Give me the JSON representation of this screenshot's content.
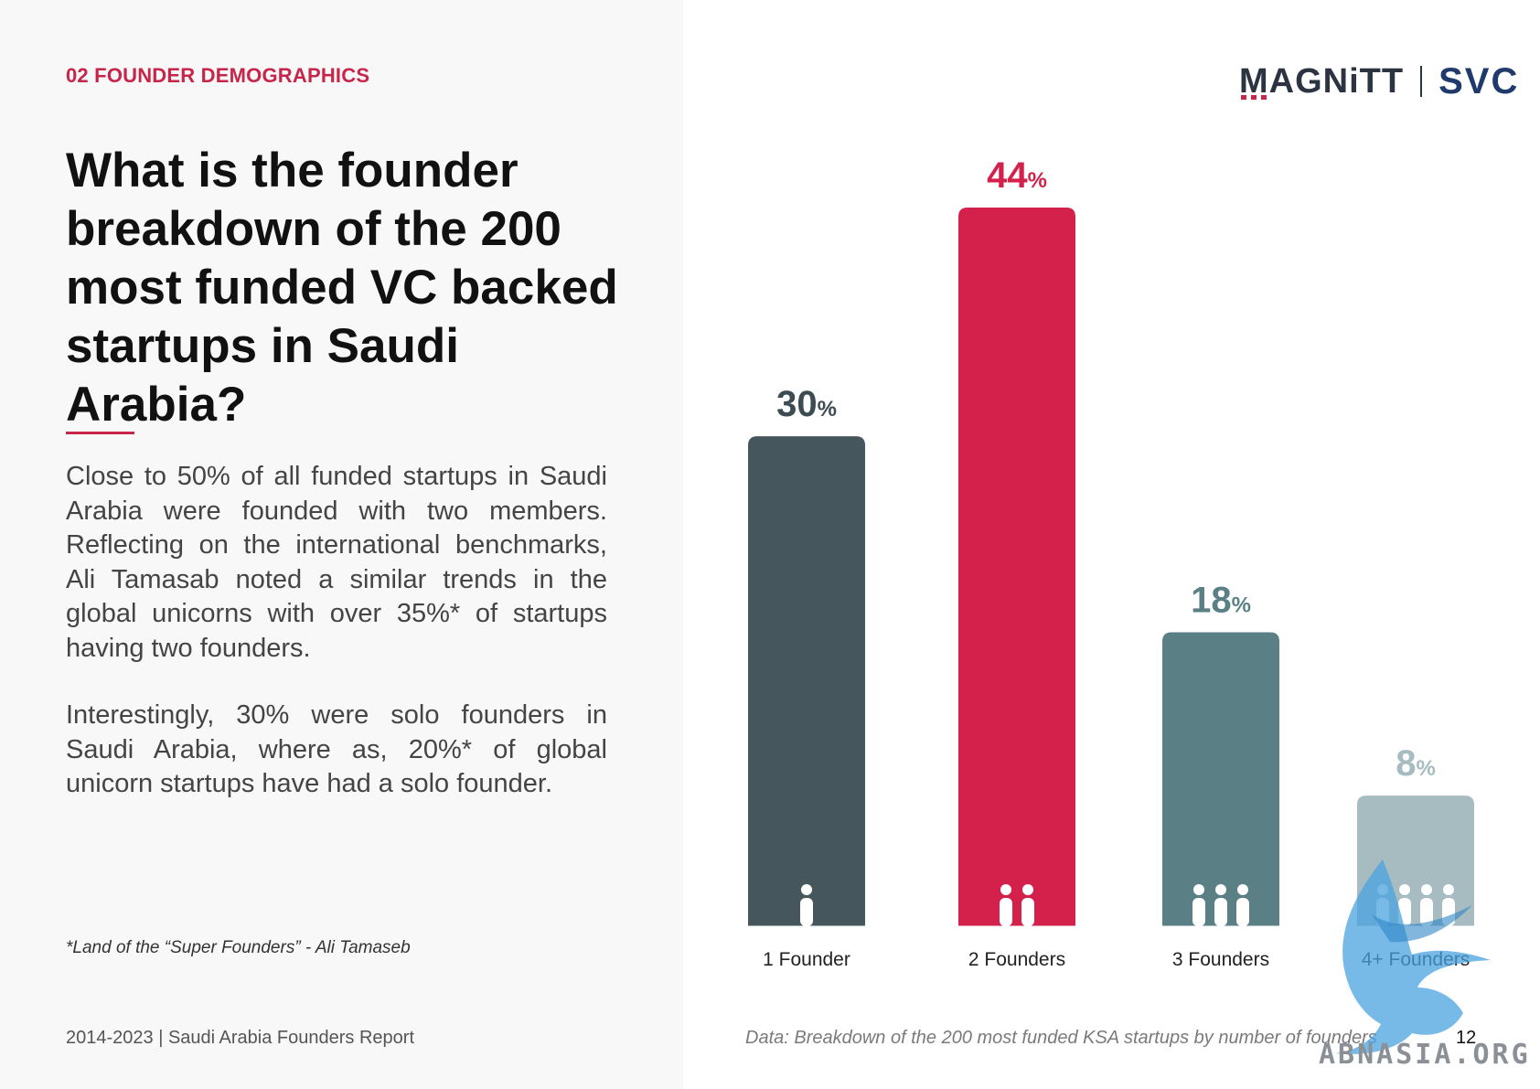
{
  "section_label": "02 FOUNDER DEMOGRAPHICS",
  "headline": "What is the founder breakdown of the 200 most funded VC backed startups in Saudi Arabia?",
  "paragraphs": [
    "Close to 50% of all funded startups in Saudi Arabia were founded with two members. Reflecting on the international benchmarks, Ali Tamasab noted a similar trends in the global unicorns with over 35%* of startups having two founders.",
    "Interestingly, 30% were solo founders in Saudi Arabia, where as, 20%* of global unicorn startups have had a solo founder."
  ],
  "footnote": "*Land of the “Super Founders” - Ali Tamaseb",
  "footer_left": "2014-2023 | Saudi Arabia Founders Report",
  "logos": {
    "magnitt": "MAGNiTT",
    "svc": "SVC"
  },
  "chart_data": {
    "type": "bar",
    "categories": [
      "1 Founder",
      "2 Founders",
      "3 Founders",
      "4+ Founders"
    ],
    "values": [
      30,
      44,
      18,
      8
    ],
    "value_suffix": "%",
    "founder_icon_counts": [
      1,
      2,
      3,
      4
    ],
    "colors": [
      "#45575d",
      "#d3214b",
      "#5a8086",
      "#a6bcc0"
    ],
    "label_colors": [
      "#3d4c52",
      "#d3214b",
      "#5a8086",
      "#a6bcc0"
    ],
    "ylim": [
      0,
      44
    ],
    "grid": false,
    "caption": "Data: Breakdown of the 200 most funded KSA startups by number of founders"
  },
  "page_number": "12",
  "watermark_text": "ABNASIA.ORG"
}
